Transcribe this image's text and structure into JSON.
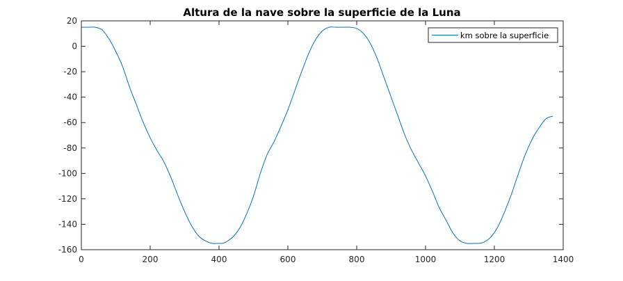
{
  "chart_data": {
    "type": "line",
    "title": "Altura de la nave sobre la superficie de la Luna",
    "xlabel": "",
    "ylabel": "",
    "xlim": [
      0,
      1400
    ],
    "ylim": [
      -160,
      20
    ],
    "xticks": [
      0,
      200,
      400,
      600,
      800,
      1000,
      1200,
      1400
    ],
    "yticks": [
      20,
      0,
      -20,
      -40,
      -60,
      -80,
      -100,
      -120,
      -140,
      -160
    ],
    "grid": false,
    "legend": {
      "placement": "top-right",
      "entries": [
        "km sobre la superficie"
      ]
    },
    "series": [
      {
        "name": "km sobre la superficie",
        "color": "#0072BD",
        "x": [
          0,
          20,
          40,
          60,
          80,
          100,
          120,
          140,
          160,
          180,
          200,
          220,
          240,
          260,
          280,
          300,
          320,
          340,
          360,
          380,
          400,
          410,
          420,
          440,
          460,
          480,
          500,
          520,
          540,
          560,
          580,
          600,
          620,
          640,
          660,
          680,
          700,
          720,
          740,
          760,
          780,
          800,
          820,
          840,
          860,
          880,
          900,
          920,
          940,
          960,
          980,
          1000,
          1020,
          1040,
          1060,
          1080,
          1100,
          1120,
          1140,
          1155,
          1170,
          1190,
          1210,
          1230,
          1250,
          1270,
          1290,
          1310,
          1330,
          1350,
          1370
        ],
        "values": [
          15,
          15,
          15,
          13,
          6,
          -4,
          -16,
          -32,
          -46,
          -60,
          -72,
          -82,
          -91,
          -103,
          -117,
          -130,
          -141,
          -149,
          -153,
          -155,
          -155,
          -155,
          -154,
          -150,
          -143,
          -132,
          -118,
          -100,
          -85,
          -75,
          -63,
          -50,
          -35,
          -20,
          -6,
          5,
          12,
          15,
          15,
          15,
          15,
          14,
          10,
          2,
          -10,
          -25,
          -40,
          -55,
          -70,
          -82,
          -92,
          -102,
          -114,
          -127,
          -137,
          -147,
          -153,
          -155,
          -155,
          -155,
          -154,
          -150,
          -142,
          -130,
          -116,
          -100,
          -85,
          -73,
          -64,
          -57,
          -55
        ]
      }
    ]
  }
}
